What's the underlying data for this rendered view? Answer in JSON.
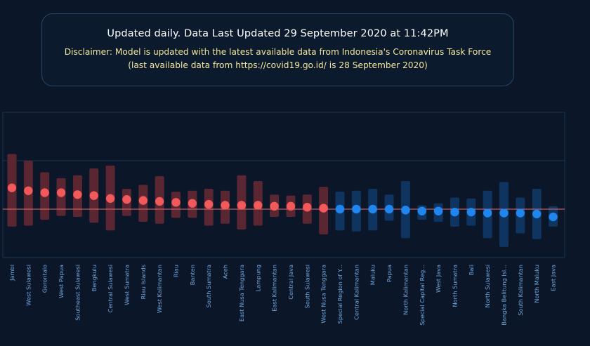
{
  "header": {
    "updated": "Updated daily. Data Last Updated 29 September 2020 at 11:42PM",
    "disclaimer_line1": "Disclaimer: Model is updated with the latest available data from Indonesia's Coronavirus Task Force",
    "disclaimer_line2": "(last available data from https://covid19.go.id/ is 28 September 2020)"
  },
  "colors": {
    "above": "#f2595a",
    "above_band": "#5a2632",
    "below": "#1f86f0",
    "below_band": "#0f3460",
    "reference_line": "#e76a6f",
    "grid": "#1c3554"
  },
  "chart_data": {
    "type": "scatter",
    "title": "",
    "xlabel": "",
    "ylabel": "",
    "reference_value": 1.0,
    "ylim": [
      0.5,
      2.0
    ],
    "categories": [
      "Jambi",
      "West Sulawesi",
      "Gorontalo",
      "West Papua",
      "Southeast Sulawesi",
      "Bengkulu",
      "Central Sulawesi",
      "West Sumatra",
      "Riau Islands",
      "West Kalimantan",
      "Riau",
      "Banten",
      "South Sumatra",
      "Aceh",
      "East Nusa Tenggara",
      "Lampung",
      "East Kalimantan",
      "Central Java",
      "South Sulawesi",
      "West Nusa Tenggara",
      "Special Region of Y...",
      "Central Kalimantan",
      "Maluku",
      "Papua",
      "North Kalimantan",
      "Special Capital Reg...",
      "West Java",
      "North Sumatra",
      "Bali",
      "North Sulawesi",
      "Bangka Belitung Isl...",
      "South Kalimantan",
      "North Maluku",
      "East Java"
    ],
    "values": [
      1.22,
      1.19,
      1.17,
      1.17,
      1.15,
      1.14,
      1.11,
      1.1,
      1.09,
      1.08,
      1.07,
      1.06,
      1.05,
      1.04,
      1.04,
      1.04,
      1.03,
      1.03,
      1.02,
      1.01,
      1.0,
      1.0,
      1.0,
      1.0,
      0.99,
      0.98,
      0.98,
      0.97,
      0.97,
      0.96,
      0.96,
      0.96,
      0.95,
      0.92
    ],
    "lower": [
      0.82,
      0.83,
      0.89,
      0.93,
      0.92,
      0.86,
      0.78,
      0.93,
      0.87,
      0.85,
      0.91,
      0.91,
      0.83,
      0.85,
      0.79,
      0.83,
      0.92,
      0.92,
      0.85,
      0.74,
      0.78,
      0.77,
      0.78,
      0.88,
      0.7,
      0.89,
      0.87,
      0.82,
      0.83,
      0.7,
      0.61,
      0.75,
      0.69,
      0.82
    ],
    "upper": [
      1.57,
      1.5,
      1.38,
      1.32,
      1.35,
      1.42,
      1.45,
      1.21,
      1.25,
      1.34,
      1.18,
      1.19,
      1.21,
      1.19,
      1.35,
      1.29,
      1.15,
      1.14,
      1.15,
      1.23,
      1.18,
      1.19,
      1.21,
      1.15,
      1.29,
      1.04,
      1.06,
      1.12,
      1.11,
      1.19,
      1.28,
      1.12,
      1.21,
      1.03
    ]
  }
}
